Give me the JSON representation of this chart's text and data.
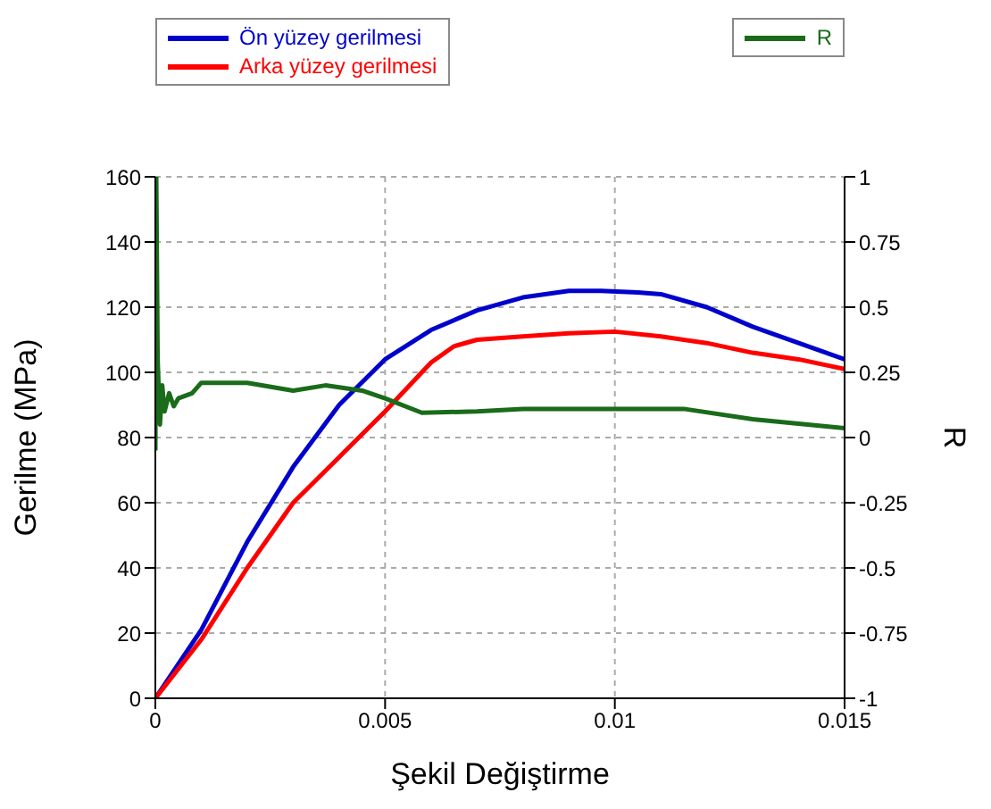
{
  "chart_data": {
    "type": "line",
    "xlabel": "Şekil Değiştirme",
    "ylabel": "Gerilme (MPa)",
    "y2label": "R",
    "xlim": [
      0,
      0.015
    ],
    "xticks": [
      0,
      0.005,
      0.01,
      0.015
    ],
    "ylim": [
      0,
      160
    ],
    "yticks": [
      0,
      20,
      40,
      60,
      80,
      100,
      120,
      140,
      160
    ],
    "y2lim": [
      -1,
      1
    ],
    "y2ticks": [
      -1,
      -0.75,
      -0.5,
      -0.25,
      0,
      0.25,
      0.5,
      0.75,
      1
    ],
    "grid": true,
    "legend": "top",
    "marker": "none",
    "line_style": "solid",
    "series": [
      {
        "name": "Ön yüzey gerilmesi",
        "color": "#0000cc",
        "x": [
          0,
          0.001,
          0.002,
          0.003,
          0.004,
          0.005,
          0.006,
          0.007,
          0.008,
          0.009,
          0.0097,
          0.0105,
          0.011,
          0.012,
          0.013,
          0.014,
          0.015
        ],
        "values": [
          0,
          21,
          48,
          71,
          90,
          104,
          113,
          119,
          123,
          125,
          125,
          124.5,
          124,
          120,
          114,
          109,
          104
        ]
      },
      {
        "name": "Arka yüzey gerilmesi",
        "color": "#ff0000",
        "x": [
          0,
          0.001,
          0.002,
          0.003,
          0.004,
          0.005,
          0.006,
          0.0065,
          0.007,
          0.008,
          0.009,
          0.01,
          0.011,
          0.012,
          0.013,
          0.014,
          0.015
        ],
        "values": [
          0,
          18,
          40,
          60,
          74,
          88,
          103,
          108,
          110,
          111,
          112,
          112.5,
          111,
          109,
          106,
          104,
          101
        ]
      },
      {
        "name": "R",
        "color": "#1a6b1a",
        "axis": "y2",
        "x": [
          0,
          2e-05,
          5e-05,
          0.0001,
          0.00015,
          0.0002,
          0.0003,
          0.0004,
          0.0005,
          0.0008,
          0.001,
          0.002,
          0.003,
          0.0037,
          0.0045,
          0.005,
          0.0058,
          0.007,
          0.008,
          0.01,
          0.0115,
          0.013,
          0.015
        ],
        "values": [
          -0.05,
          1,
          0.3,
          0.05,
          0.2,
          0.1,
          0.17,
          0.12,
          0.15,
          0.17,
          0.21,
          0.21,
          0.18,
          0.2,
          0.18,
          0.15,
          0.095,
          0.1,
          0.11,
          0.11,
          0.11,
          0.07,
          0.036
        ]
      }
    ]
  }
}
